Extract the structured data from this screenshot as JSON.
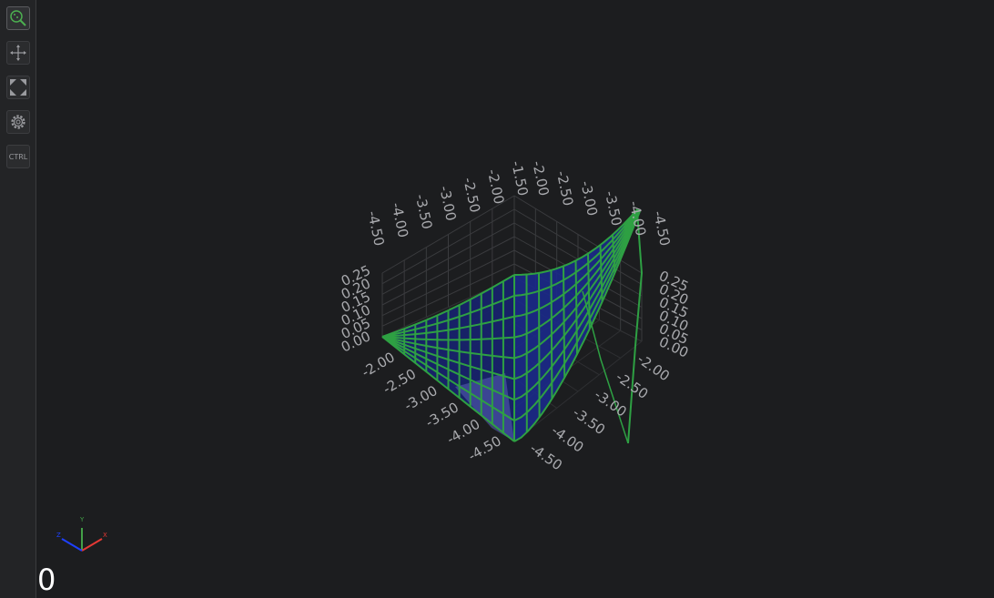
{
  "toolbar": {
    "items": [
      {
        "name": "zoom",
        "icon": "zoom-icon",
        "active": true
      },
      {
        "name": "pan",
        "icon": "move-icon"
      },
      {
        "name": "fit",
        "icon": "fit-view-icon"
      },
      {
        "name": "settings",
        "icon": "gear-icon"
      },
      {
        "name": "ctrl",
        "label": "CTRL"
      }
    ]
  },
  "chart": {
    "type": "3d-surface",
    "surface_fill": "#1a237e",
    "surface_wire": "#2ea043",
    "x_ticks": [
      "-2.00",
      "-2.50",
      "-3.00",
      "-3.50",
      "-4.00",
      "-4.50"
    ],
    "z_ticks": [
      "-2.00",
      "-2.50",
      "-3.00",
      "-3.50",
      "-4.00",
      "-4.50"
    ],
    "y_ticks": [
      "0.00",
      "0.05",
      "0.10",
      "0.15",
      "0.20",
      "0.25"
    ],
    "back_left_ticks": [
      "-4.50",
      "-4.00",
      "-3.50",
      "-3.00",
      "-2.50",
      "-2.00",
      "-1.50"
    ],
    "back_right_ticks": [
      "-2.00",
      "-2.50",
      "-3.00",
      "-3.50",
      "-4.00",
      "-4.50"
    ],
    "front_right_ticks": [
      "-2.00",
      "-2.50",
      "-3.00",
      "-3.50",
      "-4.00",
      "-4.50"
    ],
    "left_y_ticks": [
      "0.00",
      "0.05",
      "0.10",
      "0.15",
      "0.20",
      "0.25"
    ],
    "right_y_ticks": [
      "0.00",
      "0.05",
      "0.10",
      "0.15",
      "0.20",
      "0.25"
    ]
  },
  "axes_gizmo": {
    "x": "X",
    "y": "Y",
    "z": "Z",
    "x_color": "#e53935",
    "y_color": "#43a047",
    "z_color": "#1e40ff"
  },
  "counter": "0"
}
